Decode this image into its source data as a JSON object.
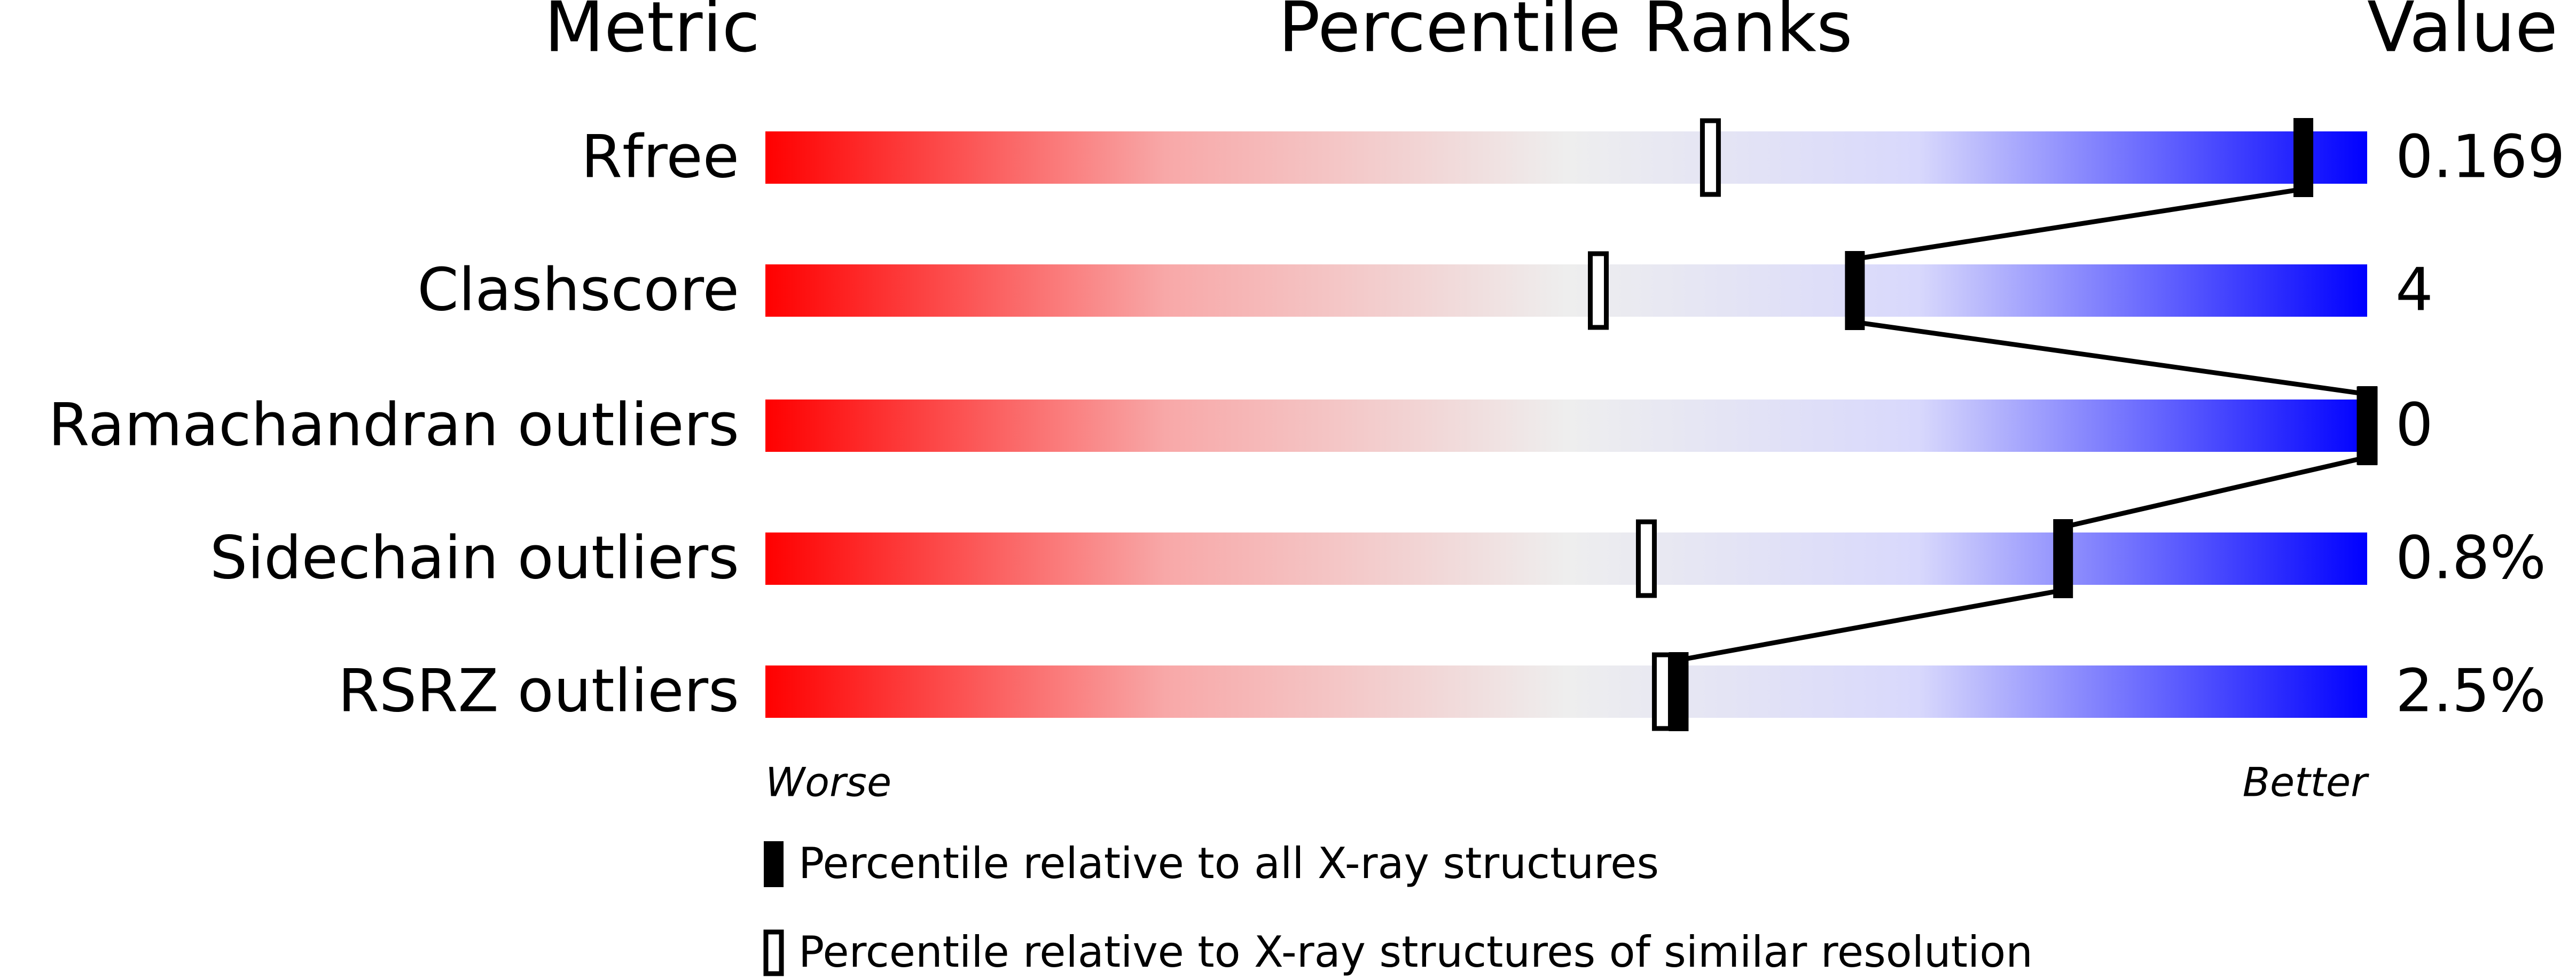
{
  "chart_data": {
    "type": "percentile",
    "headers": {
      "metric": "Metric",
      "ranks": "Percentile Ranks",
      "value": "Value"
    },
    "metrics": [
      "Rfree",
      "Clashscore",
      "Ramachandran outliers",
      "Sidechain outliers",
      "RSRZ outliers"
    ],
    "values": [
      "0.169",
      "4",
      "0",
      "0.8%",
      "2.5%"
    ],
    "series": [
      {
        "name": "Percentile relative to all X-ray structures",
        "color": "#000000",
        "values": [
          96,
          68,
          100,
          81,
          57
        ]
      },
      {
        "name": "Percentile relative to X-ray structures of similar resolution",
        "color": "#ffffff",
        "values": [
          59,
          52,
          100,
          55,
          56
        ]
      }
    ],
    "xlim": [
      0,
      100
    ],
    "worse": "Worse",
    "better": "Better"
  }
}
